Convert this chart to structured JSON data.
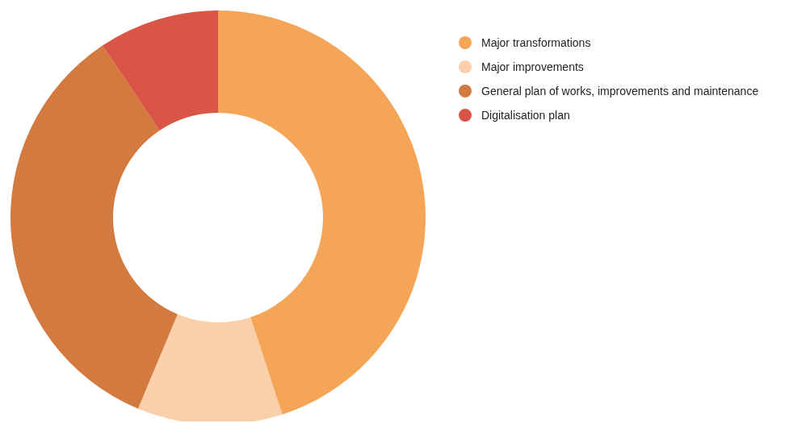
{
  "chart_data": {
    "type": "donut",
    "categories": [
      "Major transformations",
      "Major improvements",
      "General plan of works, improvements and maintenance",
      "Digitalisation plan"
    ],
    "values": [
      45,
      11.3,
      34.3,
      9.4
    ],
    "colors": [
      "#f5a557",
      "#f9d0aa",
      "#d27a3f",
      "#d95545"
    ],
    "legend": "top right"
  }
}
